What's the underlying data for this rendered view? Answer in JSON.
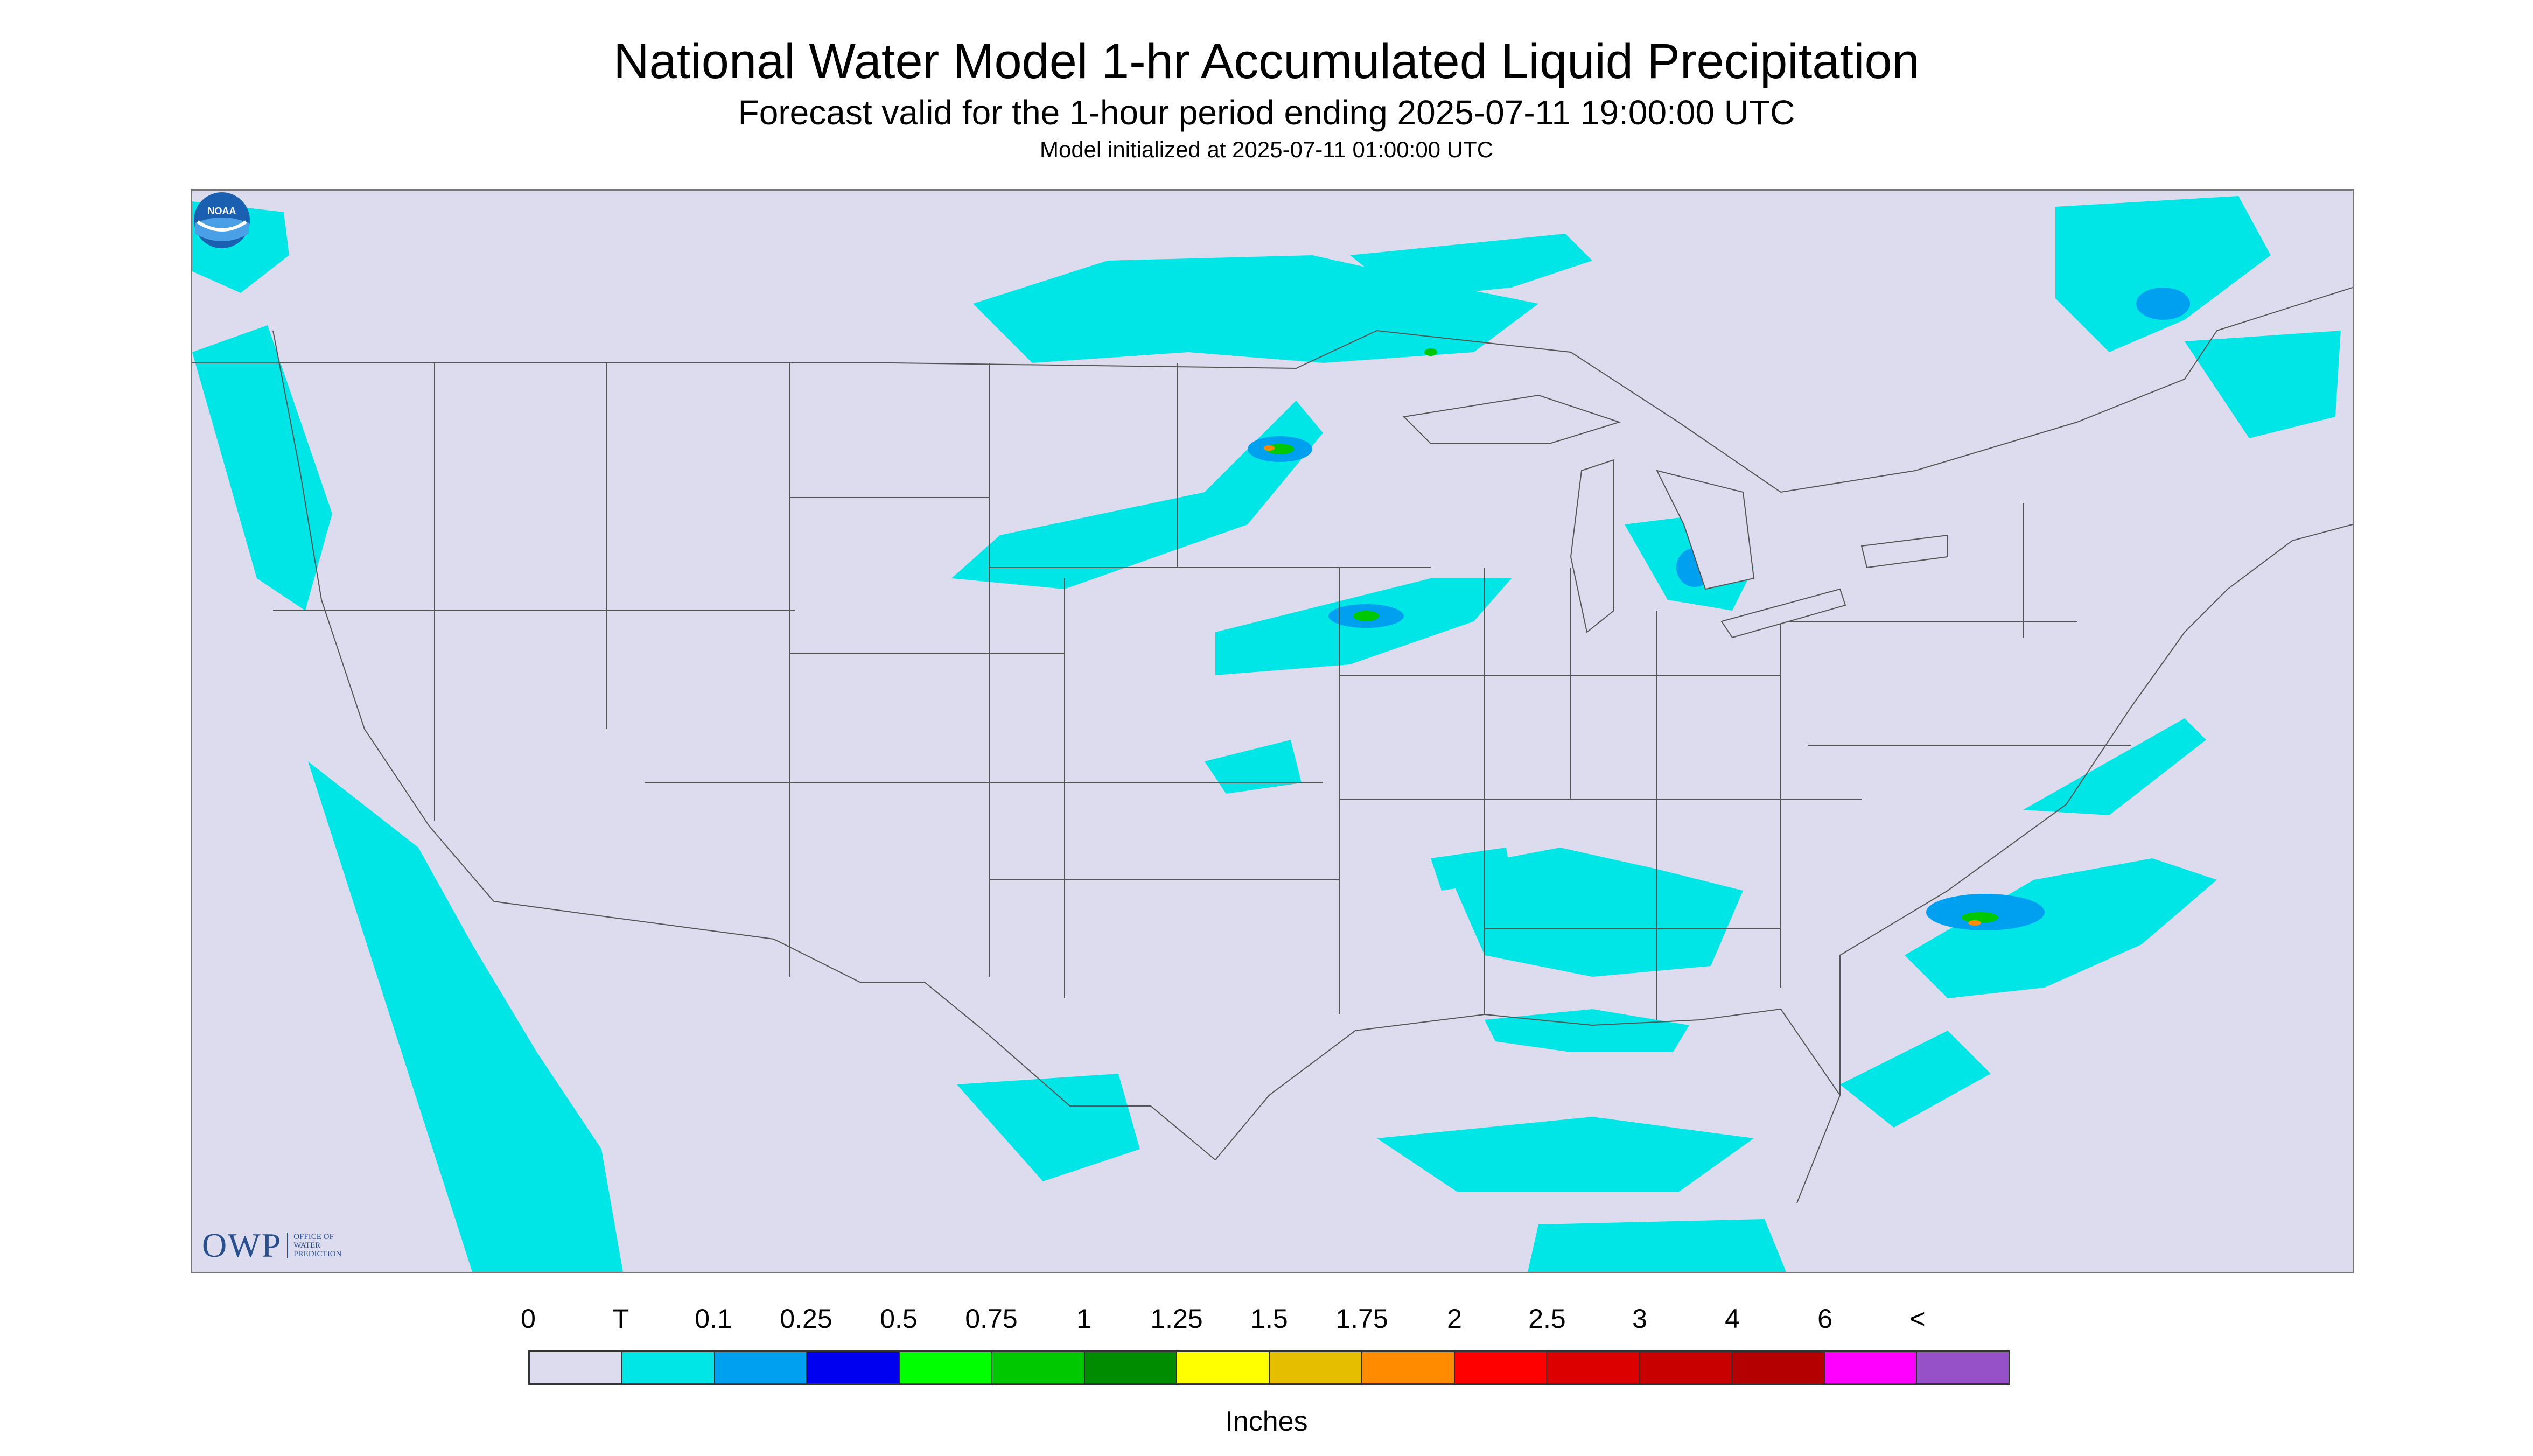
{
  "titles": {
    "main": "National Water Model 1-hr Accumulated Liquid Precipitation",
    "forecast_valid": "Forecast valid for the 1-hour period ending 2025-07-11 19:00:00 UTC",
    "model_initialized": "Model initialized at 2025-07-11 01:00:00 UTC"
  },
  "map": {
    "region": "Continental United States",
    "background_color": "#dcdcee",
    "no_data_color": "#dcdcee",
    "boundary_color": "#555555"
  },
  "logos": {
    "owp_mark": "OWP",
    "owp_text": [
      "OFFICE OF",
      "WATER",
      "PREDICTION"
    ],
    "noaa_label": "NOAA"
  },
  "legend": {
    "tick_labels": [
      "0",
      "T",
      "0.1",
      "0.25",
      "0.5",
      "0.75",
      "1",
      "1.25",
      "1.5",
      "1.75",
      "2",
      "2.5",
      "3",
      "4",
      "6",
      "<"
    ],
    "colors": [
      "#dcdcee",
      "#00e6e6",
      "#00a0f0",
      "#0000f0",
      "#00ff00",
      "#00c800",
      "#008c00",
      "#ffff00",
      "#e6be00",
      "#ff8c00",
      "#ff0000",
      "#dc0000",
      "#c80000",
      "#b40000",
      "#ff00ff",
      "#9650c8"
    ],
    "units": "Inches"
  }
}
